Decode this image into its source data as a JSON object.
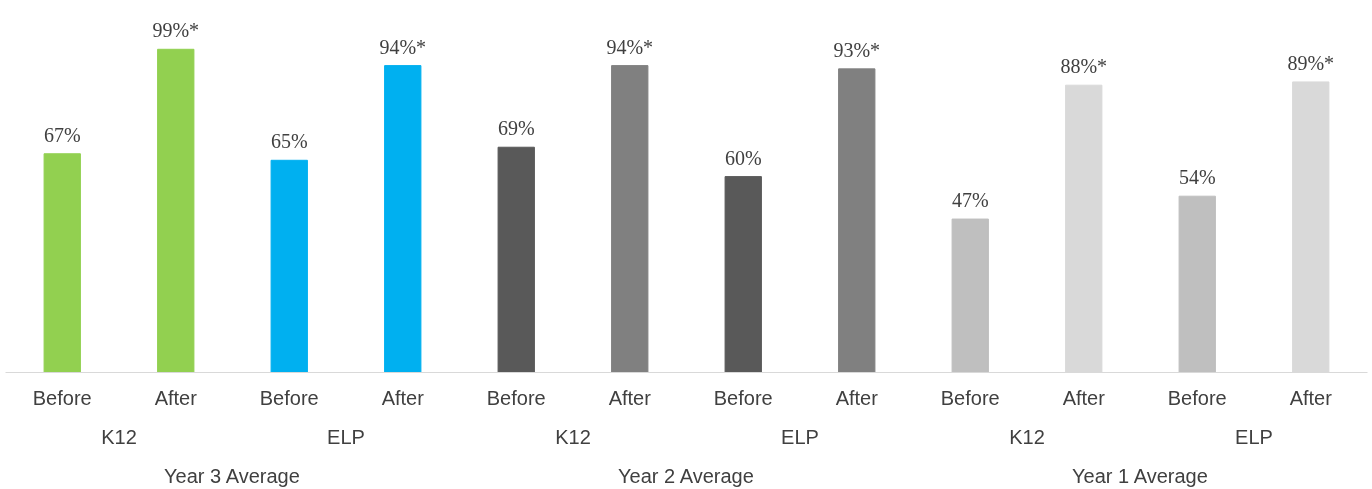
{
  "chart_data": {
    "type": "bar",
    "categories": [
      "Before",
      "After",
      "Before",
      "After",
      "Before",
      "After",
      "Before",
      "After",
      "Before",
      "After",
      "Before",
      "After"
    ],
    "values": [
      67,
      99,
      65,
      94,
      69,
      94,
      60,
      93,
      47,
      88,
      54,
      89
    ],
    "colors": [
      "#92d050",
      "#92d050",
      "#00b0f0",
      "#00b0f0",
      "#595959",
      "#808080",
      "#595959",
      "#808080",
      "#bfbfbf",
      "#d9d9d9",
      "#bfbfbf",
      "#d9d9d9"
    ],
    "value_labels": [
      "67%",
      "99%*",
      "65%",
      "94%*",
      "69%",
      "94%*",
      "60%",
      "93%*",
      "47%",
      "88%*",
      "54%",
      "89%*"
    ],
    "annotations": [
      "K12",
      "ELP",
      "K12",
      "ELP",
      "K12",
      "ELP",
      "Year 3 Average",
      "Year 2 Average",
      "Year 1 Average"
    ],
    "grid": false
  }
}
